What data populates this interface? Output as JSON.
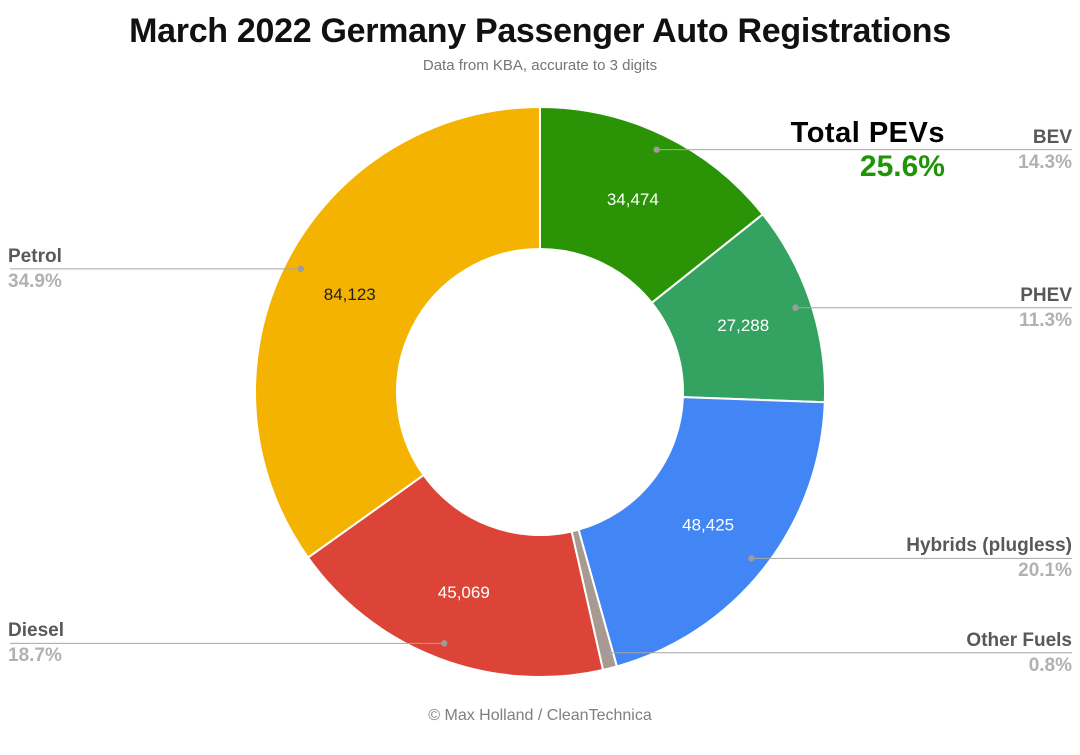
{
  "header": {
    "title": "March 2022 Germany Passenger Auto Registrations",
    "subtitle": "Data from KBA, accurate to 3 digits"
  },
  "annotation": {
    "label": "Total PEVs",
    "value": "25.6%",
    "value_color": "#1e9406"
  },
  "footer": {
    "credit": "© Max Holland / CleanTechnica"
  },
  "chart_data": {
    "type": "pie",
    "variant": "donut",
    "title": "March 2022 Germany Passenger Auto Registrations",
    "subtitle": "Data from KBA, accurate to 3 digits",
    "hole_ratio": 0.5,
    "start_angle_deg": 0,
    "direction": "clockwise",
    "legend_position": "none",
    "background": "#ffffff",
    "categories": [
      "BEV",
      "PHEV",
      "Hybrids (plugless)",
      "Other Fuels",
      "Diesel",
      "Petrol"
    ],
    "segments": [
      {
        "label": "BEV",
        "pct": 14.3,
        "pct_label": "14.3%",
        "value": 34474,
        "value_label": "34,474",
        "color": "#2a9306",
        "value_label_color": "#ffffff",
        "callout_side": "right"
      },
      {
        "label": "PHEV",
        "pct": 11.3,
        "pct_label": "11.3%",
        "value": 27288,
        "value_label": "27,288",
        "color": "#34a260",
        "value_label_color": "#ffffff",
        "callout_side": "right"
      },
      {
        "label": "Hybrids (plugless)",
        "pct": 20.1,
        "pct_label": "20.1%",
        "value": 48425,
        "value_label": "48,425",
        "color": "#4285f4",
        "value_label_color": "#ffffff",
        "callout_side": "right"
      },
      {
        "label": "Other Fuels",
        "pct": 0.8,
        "pct_label": "0.8%",
        "value_label": "",
        "color": "#a89a91",
        "value_label_color": "#ffffff",
        "callout_side": "right"
      },
      {
        "label": "Diesel",
        "pct": 18.7,
        "pct_label": "18.7%",
        "value": 45069,
        "value_label": "45,069",
        "color": "#db4437",
        "value_label_color": "#ffffff",
        "callout_side": "left"
      },
      {
        "label": "Petrol",
        "pct": 34.9,
        "pct_label": "34.9%",
        "value": 84123,
        "value_label": "84,123",
        "color": "#f5b301",
        "value_label_color": "#212121",
        "callout_side": "left"
      }
    ],
    "annotation_pct": 25.6
  }
}
